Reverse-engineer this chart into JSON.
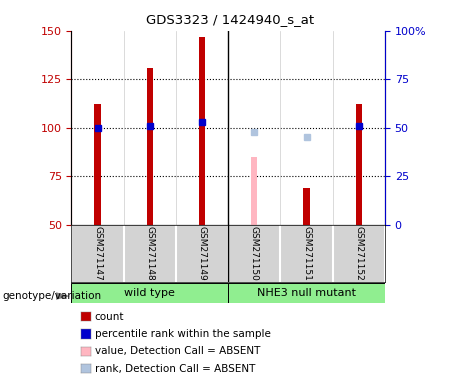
{
  "title": "GDS3323 / 1424940_s_at",
  "samples": [
    "GSM271147",
    "GSM271148",
    "GSM271149",
    "GSM271150",
    "GSM271151",
    "GSM271152"
  ],
  "count_values": [
    112,
    131,
    147,
    null,
    69,
    112
  ],
  "count_absent_values": [
    null,
    null,
    null,
    85,
    null,
    null
  ],
  "percentile_values": [
    50,
    51,
    53,
    null,
    null,
    51
  ],
  "percentile_absent_values": [
    null,
    null,
    null,
    48,
    45,
    null
  ],
  "count_color": "#C00000",
  "count_absent_color": "#FFB6C1",
  "percentile_color": "#0000CC",
  "percentile_absent_color": "#B0C4DE",
  "ylim_left": [
    50,
    150
  ],
  "ylim_right": [
    0,
    100
  ],
  "yticks_left": [
    50,
    75,
    100,
    125,
    150
  ],
  "yticks_right": [
    0,
    25,
    50,
    75,
    100
  ],
  "ytick_labels_right": [
    "0",
    "25",
    "50",
    "75",
    "100%"
  ],
  "groups": [
    {
      "label": "wild type",
      "indices": [
        0,
        1,
        2
      ],
      "color": "#90EE90"
    },
    {
      "label": "NHE3 null mutant",
      "indices": [
        3,
        4,
        5
      ],
      "color": "#90EE90"
    }
  ],
  "group_label_prefix": "genotype/variation",
  "bar_width": 0.12,
  "marker_size": 5,
  "bg_color": "#D3D3D3",
  "plot_bg": "#FFFFFF",
  "legend_items": [
    {
      "label": "count",
      "color": "#C00000"
    },
    {
      "label": "percentile rank within the sample",
      "color": "#0000CC"
    },
    {
      "label": "value, Detection Call = ABSENT",
      "color": "#FFB6C1"
    },
    {
      "label": "rank, Detection Call = ABSENT",
      "color": "#B0C4DE"
    }
  ]
}
